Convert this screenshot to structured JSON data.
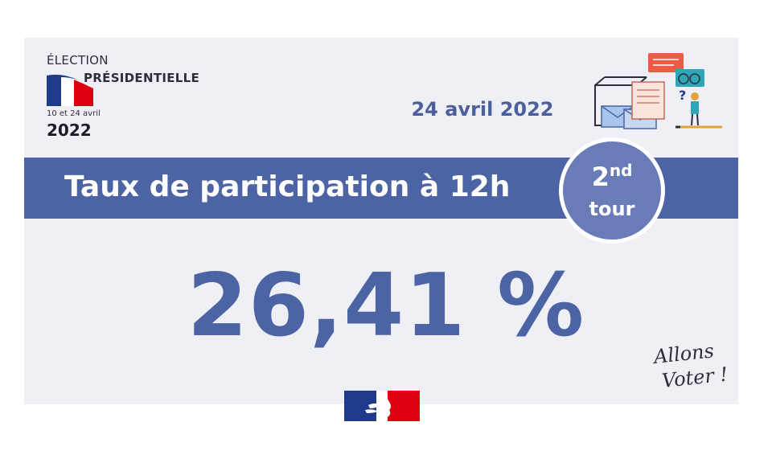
{
  "logo": {
    "line1": "ÉLECTION",
    "line2": "PRÉSIDENTIELLE",
    "dates": "10 et 24 avril",
    "year": "2022"
  },
  "date": "24 avril 2022",
  "banner": {
    "title": "Taux de participation à 12h"
  },
  "badge": {
    "number": "2",
    "suffix": "nd",
    "label": "tour"
  },
  "participation_rate": "26,41 %",
  "slogan": [
    "Allons",
    "Voter !"
  ],
  "colors": {
    "primary": "#4d64a4",
    "badge": "#6a7cb8",
    "background": "#eff0f5",
    "flag_blue": "#1f3a8a",
    "flag_red": "#e1000f"
  },
  "icons": [
    "french-flag-icon",
    "voting-illustration-icon",
    "marianne-logo-icon"
  ]
}
